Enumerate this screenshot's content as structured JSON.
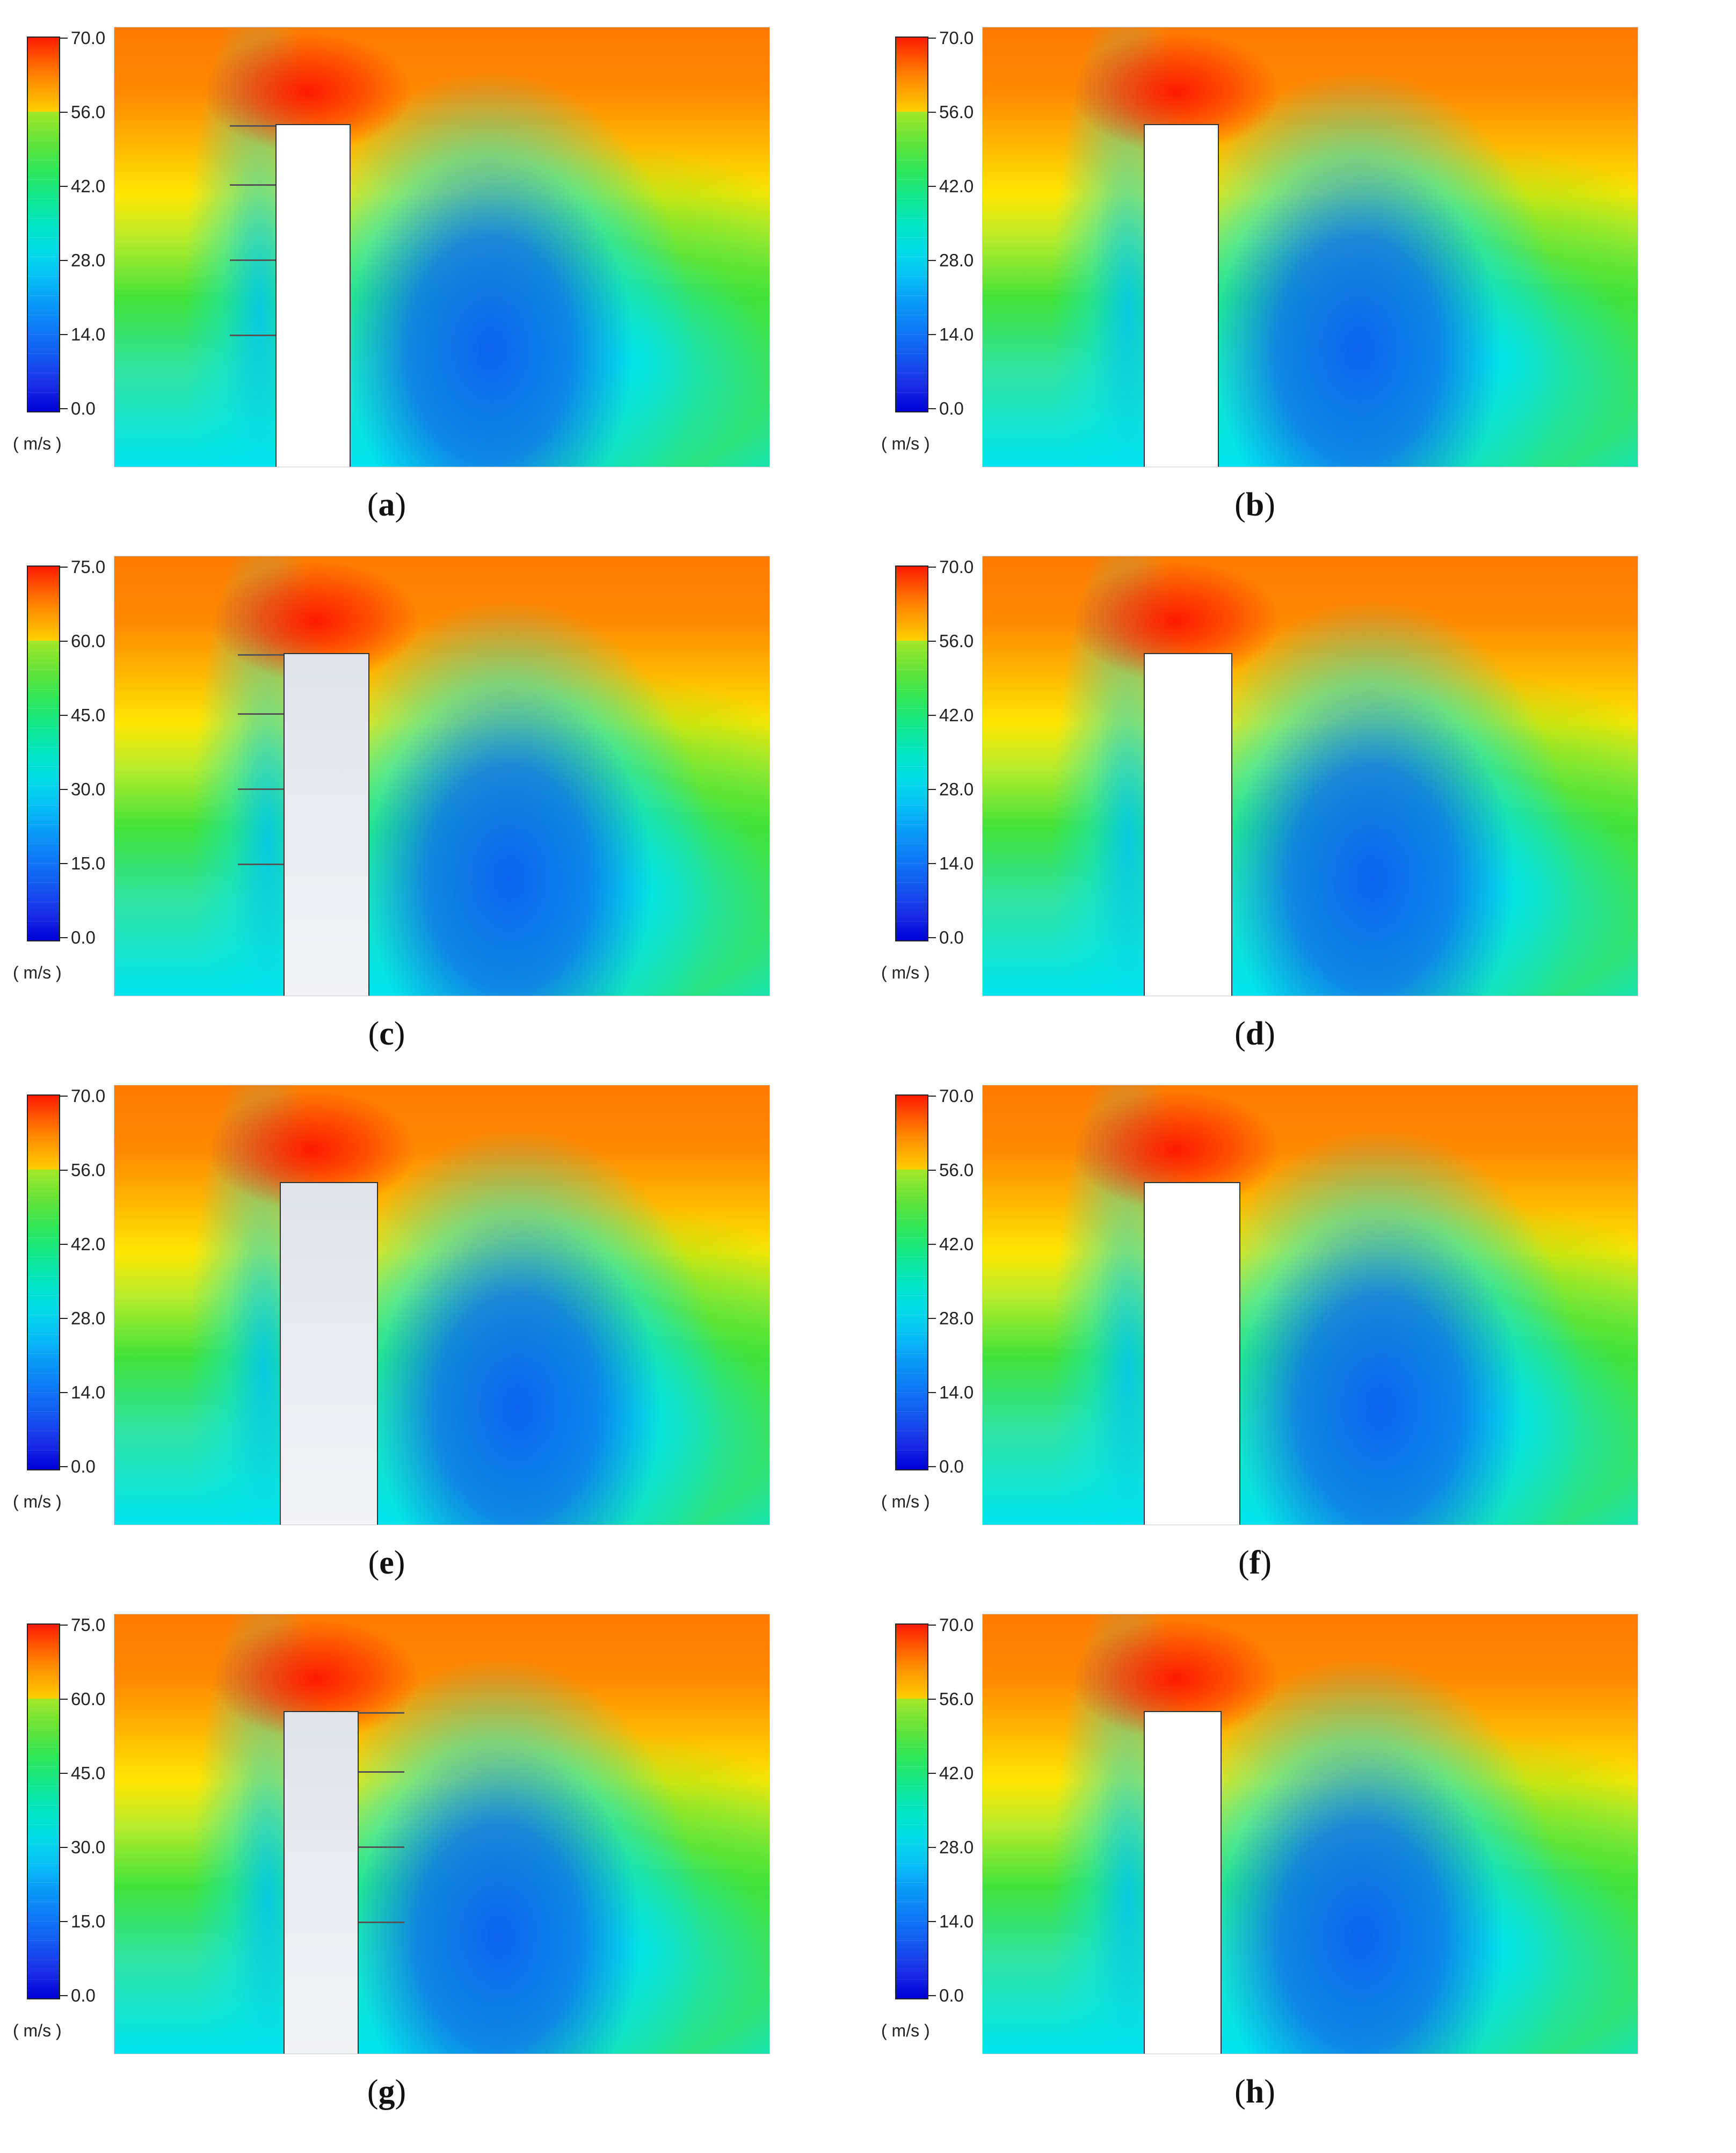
{
  "unit_label": "( m/s )",
  "panels": [
    {
      "caption_open": "(",
      "letter": "a",
      "caption_close": ")",
      "ticks": [
        "70.0",
        "56.0",
        "42.0",
        "28.0",
        "14.0",
        "0.0"
      ]
    },
    {
      "caption_open": "(",
      "letter": "b",
      "caption_close": ")",
      "ticks": [
        "70.0",
        "56.0",
        "42.0",
        "28.0",
        "14.0",
        "0.0"
      ]
    },
    {
      "caption_open": "(",
      "letter": "c",
      "caption_close": ")",
      "ticks": [
        "75.0",
        "60.0",
        "45.0",
        "30.0",
        "15.0",
        "0.0"
      ]
    },
    {
      "caption_open": "(",
      "letter": "d",
      "caption_close": ")",
      "ticks": [
        "70.0",
        "56.0",
        "42.0",
        "28.0",
        "14.0",
        "0.0"
      ]
    },
    {
      "caption_open": "(",
      "letter": "e",
      "caption_close": ")",
      "ticks": [
        "70.0",
        "56.0",
        "42.0",
        "28.0",
        "14.0",
        "0.0"
      ]
    },
    {
      "caption_open": "(",
      "letter": "f",
      "caption_close": ")",
      "ticks": [
        "70.0",
        "56.0",
        "42.0",
        "28.0",
        "14.0",
        "0.0"
      ]
    },
    {
      "caption_open": "(",
      "letter": "g",
      "caption_close": ")",
      "ticks": [
        "75.0",
        "60.0",
        "45.0",
        "30.0",
        "15.0",
        "0.0"
      ]
    },
    {
      "caption_open": "(",
      "letter": "h",
      "caption_close": ")",
      "ticks": [
        "70.0",
        "56.0",
        "42.0",
        "28.0",
        "14.0",
        "0.0"
      ]
    }
  ],
  "colors": {
    "high": "#ff1a00",
    "upper": "#ff8a00",
    "mid_high": "#ffe600",
    "mid": "#40e23a",
    "mid_low": "#00e4f0",
    "low": "#0a64f0",
    "min": "#0000d8"
  }
}
